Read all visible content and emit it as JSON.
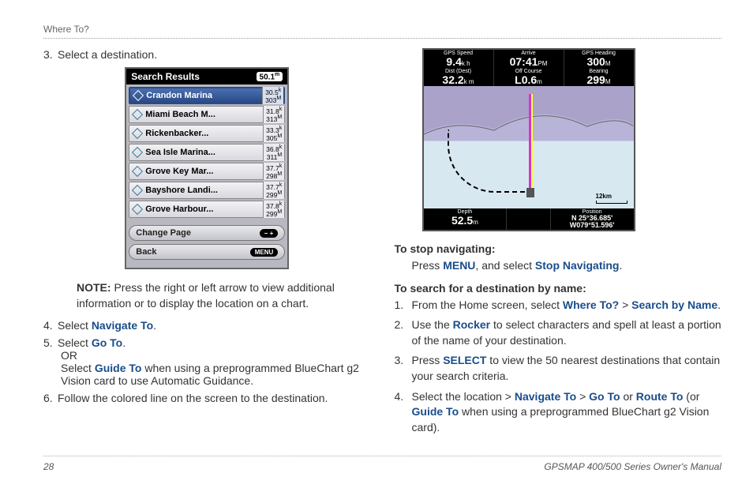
{
  "header": "Where To?",
  "left": {
    "step3": "Select a destination.",
    "device": {
      "title": "Search Results",
      "headDist": "50.1",
      "headUnit": "m",
      "rows": [
        {
          "name": "Crandon Marina",
          "d1": "30.5",
          "u1": "k",
          "d2": "303",
          "u2": "M",
          "sel": true
        },
        {
          "name": "Miami Beach M...",
          "d1": "31.8",
          "u1": "k",
          "d2": "313",
          "u2": "M"
        },
        {
          "name": "Rickenbacker...",
          "d1": "33.3",
          "u1": "k",
          "d2": "305",
          "u2": "M"
        },
        {
          "name": "Sea Isle Marina...",
          "d1": "36.8",
          "u1": "k",
          "d2": "311",
          "u2": "M"
        },
        {
          "name": "Grove Key Mar...",
          "d1": "37.7",
          "u1": "k",
          "d2": "298",
          "u2": "M"
        },
        {
          "name": "Bayshore Landi...",
          "d1": "37.7",
          "u1": "k",
          "d2": "299",
          "u2": "M"
        },
        {
          "name": "Grove Harbour...",
          "d1": "37.8",
          "u1": "k",
          "d2": "299",
          "u2": "M"
        }
      ],
      "btn1": "Change Page",
      "btn1pill": "−   +",
      "btn2": "Back",
      "btn2pill": "MENU"
    },
    "noteLabel": "NOTE:",
    "noteText": " Press the right or left arrow to view additional information or to display the location on a chart.",
    "step4a": "Select ",
    "step4b": "Navigate To",
    "step5a": "Select ",
    "step5b": "Go To",
    "step5or": "OR",
    "step5c1": "Select ",
    "step5c2": "Guide To",
    "step5c3": " when using a preprogrammed BlueChart g2 Vision card to use Automatic Guidance.",
    "step6": "Follow the colored line on the screen to the destination."
  },
  "right": {
    "nav": {
      "top": [
        {
          "label": "GPS Speed",
          "val": "9.4",
          "unit": "k h"
        },
        {
          "label": "Arrive",
          "val": "07:41",
          "unit": "PM"
        },
        {
          "label": "GPS Heading",
          "val": "300",
          "unit": "M"
        }
      ],
      "mid": [
        {
          "label": "Dist (Dest)",
          "val": "32.2",
          "unit": "k m"
        },
        {
          "label": "Off Course",
          "val": "L0.6",
          "unit": "m"
        },
        {
          "label": "Bearing",
          "val": "299",
          "unit": "M"
        }
      ],
      "bot": [
        {
          "label": "Depth",
          "val": "52.5",
          "unit": "m"
        },
        {
          "label": "",
          "val": "",
          "unit": ""
        },
        {
          "label": "Position",
          "val": "N  25°36.685'",
          "val2": "W079°51.596'"
        }
      ],
      "scale": "12km"
    },
    "stopHead": "To stop navigating:",
    "stop1": "Press ",
    "stop2": "MENU",
    "stop3": ", and select ",
    "stop4": "Stop Navigating",
    "searchHead": "To search for a destination by name:",
    "s1a": "From the Home screen, select ",
    "s1b": "Where To?",
    "s1c": " > ",
    "s1d": "Search by Name",
    "s2a": "Use the ",
    "s2b": "Rocker",
    "s2c": " to select characters and spell at least a portion of the name of your destination.",
    "s3a": "Press ",
    "s3b": "SELECT",
    "s3c": " to view the 50 nearest destinations that contain your search criteria.",
    "s4a": "Select the location > ",
    "s4b": "Navigate To",
    "s4c": " > ",
    "s4d": "Go To",
    "s4e": " or ",
    "s4f": "Route To",
    "s4g": " (or ",
    "s4h": "Guide To",
    "s4i": " when using a preprogrammed BlueChart g2 Vision card)."
  },
  "footer": {
    "page": "28",
    "title": "GPSMAP 400/500 Series Owner's Manual"
  }
}
